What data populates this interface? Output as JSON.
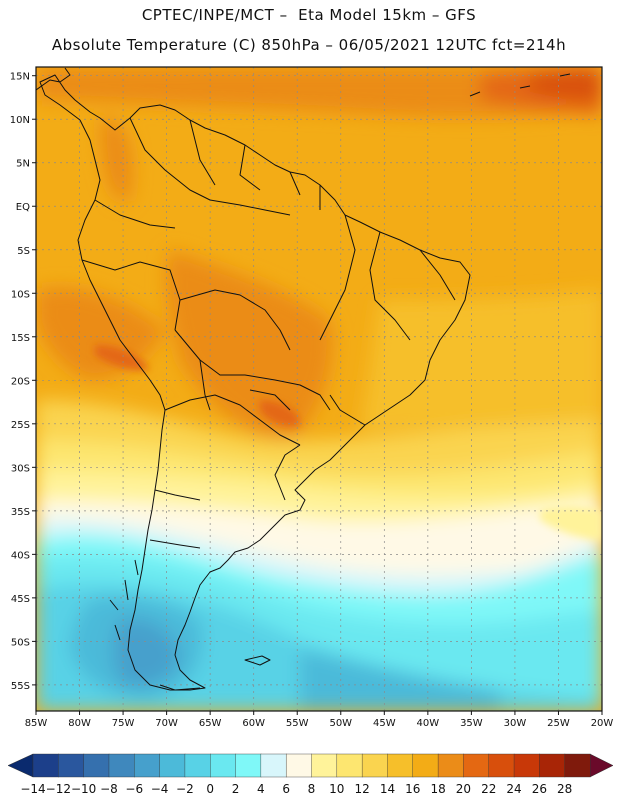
{
  "title": {
    "line1": "CPTEC/INPE/MCT –  Eta Model 15km – GFS",
    "line2": "Absolute Temperature (C) 850hPa – 06/05/2021 12UTC fct=214h"
  },
  "map": {
    "region": "South America",
    "lon_range": [
      -85,
      -20
    ],
    "lat_range": [
      -58,
      16
    ],
    "grid": "dashed",
    "lat_ticks": [
      {
        "v": 15,
        "label": "15N"
      },
      {
        "v": 10,
        "label": "10N"
      },
      {
        "v": 5,
        "label": "5N"
      },
      {
        "v": 0,
        "label": "EQ"
      },
      {
        "v": -5,
        "label": "5S"
      },
      {
        "v": -10,
        "label": "10S"
      },
      {
        "v": -15,
        "label": "15S"
      },
      {
        "v": -20,
        "label": "20S"
      },
      {
        "v": -25,
        "label": "25S"
      },
      {
        "v": -30,
        "label": "30S"
      },
      {
        "v": -35,
        "label": "35S"
      },
      {
        "v": -40,
        "label": "40S"
      },
      {
        "v": -45,
        "label": "45S"
      },
      {
        "v": -50,
        "label": "50S"
      },
      {
        "v": -55,
        "label": "55S"
      }
    ],
    "lon_ticks": [
      {
        "v": -85,
        "label": "85W"
      },
      {
        "v": -80,
        "label": "80W"
      },
      {
        "v": -75,
        "label": "75W"
      },
      {
        "v": -70,
        "label": "70W"
      },
      {
        "v": -65,
        "label": "65W"
      },
      {
        "v": -60,
        "label": "60W"
      },
      {
        "v": -55,
        "label": "55W"
      },
      {
        "v": -50,
        "label": "50W"
      },
      {
        "v": -45,
        "label": "45W"
      },
      {
        "v": -40,
        "label": "40W"
      },
      {
        "v": -35,
        "label": "35W"
      },
      {
        "v": -30,
        "label": "30W"
      },
      {
        "v": -25,
        "label": "25W"
      },
      {
        "v": -20,
        "label": "20W"
      }
    ]
  },
  "colorbar": {
    "low_color": "#0a2a6e",
    "high_color": "#6a0a2a",
    "colors": [
      "#1c3f8a",
      "#2a579e",
      "#3570ae",
      "#3f88bd",
      "#46a0cc",
      "#4cbad9",
      "#58d2e6",
      "#6ae8f0",
      "#7ff8f8",
      "#d8f6fb",
      "#fff9e6",
      "#fff39a",
      "#fde670",
      "#fad44f",
      "#f6bf2a",
      "#f3ac16",
      "#eb8c18",
      "#e46812",
      "#d84f0c",
      "#c83808",
      "#a82506",
      "#7f1a0c"
    ],
    "labels": [
      "-14",
      "-12",
      "-10",
      "-8",
      "-6",
      "-4",
      "-2",
      "0",
      "2",
      "4",
      "6",
      "8",
      "10",
      "12",
      "14",
      "16",
      "18",
      "20",
      "22",
      "24",
      "26",
      "28"
    ]
  }
}
